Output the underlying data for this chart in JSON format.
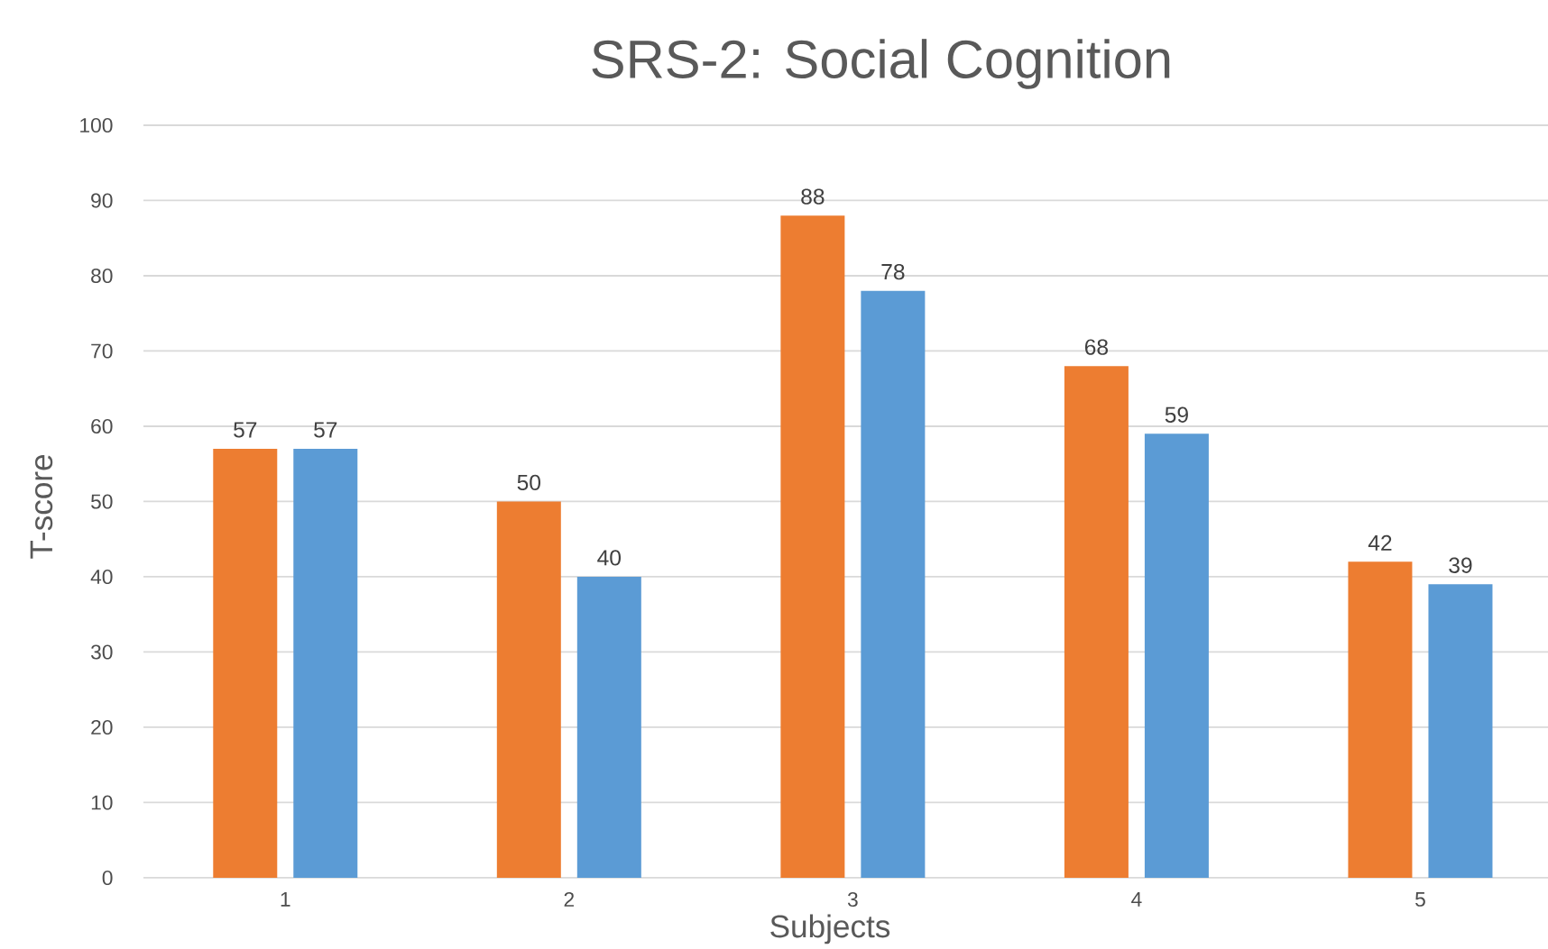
{
  "chart_data": {
    "type": "bar",
    "title": "SRS-2: Social Cognition",
    "xlabel": "Subjects",
    "ylabel": "T-score",
    "categories": [
      "1",
      "2",
      "3",
      "4",
      "5"
    ],
    "series": [
      {
        "color": "#ed7d31",
        "values": [
          57,
          50,
          88,
          68,
          42
        ]
      },
      {
        "color": "#5b9bd5",
        "values": [
          57,
          40,
          78,
          59,
          39
        ]
      }
    ],
    "ylim": [
      0,
      100
    ],
    "yticks": [
      0,
      10,
      20,
      30,
      40,
      50,
      60,
      70,
      80,
      90,
      100
    ],
    "grid": "y",
    "data_labels": true
  }
}
